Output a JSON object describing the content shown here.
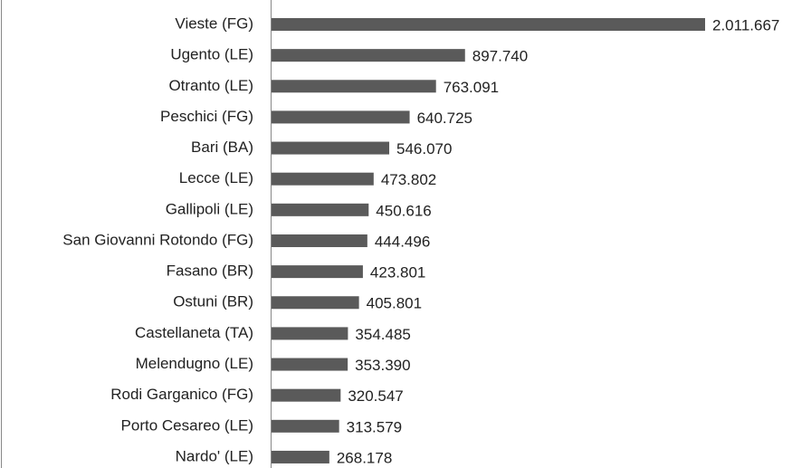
{
  "chart_data": {
    "type": "bar",
    "orientation": "horizontal",
    "categories": [
      "Vieste (FG)",
      "Ugento (LE)",
      "Otranto (LE)",
      "Peschici (FG)",
      "Bari (BA)",
      "Lecce (LE)",
      "Gallipoli (LE)",
      "San Giovanni Rotondo (FG)",
      "Fasano (BR)",
      "Ostuni (BR)",
      "Castellaneta (TA)",
      "Melendugno (LE)",
      "Rodi Garganico (FG)",
      "Porto Cesareo (LE)",
      "Nardo' (LE)"
    ],
    "values": [
      2011667,
      897740,
      763091,
      640725,
      546070,
      473802,
      450616,
      444496,
      423801,
      405801,
      354485,
      353390,
      320547,
      313579,
      268178
    ],
    "value_labels": [
      "2.011.667",
      "897.740",
      "763.091",
      "640.725",
      "546.070",
      "473.802",
      "450.616",
      "444.496",
      "423.801",
      "405.801",
      "354.485",
      "353.390",
      "320.547",
      "313.579",
      "268.178"
    ],
    "color": "#5a5a5a"
  }
}
